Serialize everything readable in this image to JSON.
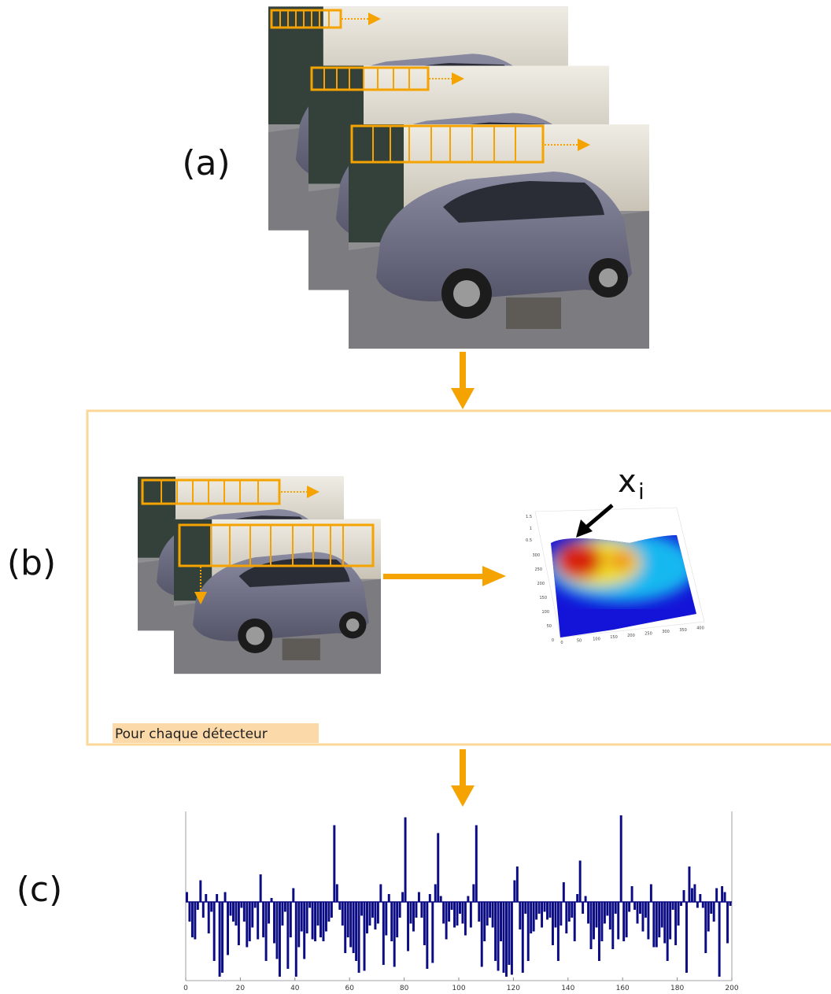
{
  "labels": {
    "a": "(a)",
    "b": "(b)",
    "c": "(c)"
  },
  "caption": "Pour chaque détecteur",
  "annotation": {
    "main": "x",
    "sub": "i"
  },
  "surface_plot": {
    "zticks": [
      1.5,
      1,
      0.5
    ],
    "yticks": [
      300,
      250,
      200,
      150,
      100,
      50,
      0
    ],
    "xticks": [
      0,
      50,
      100,
      150,
      200,
      250,
      300,
      350,
      400
    ]
  },
  "chart_data": {
    "type": "bar",
    "color": "#0b0b84",
    "xlim": [
      0,
      200
    ],
    "xticks": [
      0,
      20,
      40,
      60,
      80,
      100,
      120,
      140,
      160,
      180,
      200
    ],
    "ylim": [
      -4,
      4.6
    ],
    "values": [
      0.5,
      -1.0,
      -1.8,
      -1.9,
      -0.4,
      1.1,
      -0.8,
      0.4,
      -1.6,
      -0.5,
      -3.0,
      0.4,
      -3.8,
      -3.6,
      0.5,
      -2.7,
      -0.7,
      -1.0,
      -1.2,
      -2.2,
      -0.3,
      -1.0,
      -2.3,
      -2.0,
      -1.3,
      -0.3,
      -1.9,
      1.4,
      -1.8,
      -3.0,
      -1.1,
      0.2,
      -2.1,
      -2.9,
      -3.8,
      -1.2,
      -0.5,
      -3.4,
      -1.8,
      0.7,
      -3.8,
      -2.3,
      -1.5,
      -2.9,
      -1.6,
      -0.3,
      -1.9,
      -2.0,
      -1.2,
      -1.8,
      -2.0,
      -1.5,
      -1.0,
      -0.8,
      3.9,
      0.9,
      -0.4,
      -1.2,
      -2.6,
      -1.8,
      -2.3,
      -2.6,
      -3.0,
      -3.6,
      -0.7,
      -3.5,
      -1.6,
      -1.2,
      -0.8,
      -1.4,
      -1.1,
      0.9,
      -3.2,
      -1.7,
      0.4,
      -2.0,
      -3.3,
      -1.8,
      -0.8,
      0.5,
      4.3,
      -2.5,
      -1.1,
      -1.5,
      -0.8,
      0.5,
      -0.8,
      -2.2,
      -3.4,
      0.4,
      -3.1,
      0.9,
      3.5,
      0.3,
      -1.1,
      -1.9,
      -1.0,
      -0.4,
      -1.3,
      -1.2,
      -0.6,
      -1.1,
      -1.7,
      0.3,
      -1.3,
      0.9,
      3.9,
      -1.0,
      -3.3,
      -2.0,
      -1.2,
      -0.8,
      -1.3,
      -3.0,
      -3.5,
      -2.0,
      -3.6,
      -3.8,
      -3.2,
      -3.7,
      1.1,
      1.8,
      -1.4,
      -3.6,
      -0.6,
      -3.0,
      -1.6,
      -1.5,
      -0.9,
      -0.6,
      -1.3,
      -0.5,
      -0.9,
      -0.8,
      -2.2,
      -1.3,
      -3.0,
      -1.2,
      1.0,
      -1.6,
      -1.0,
      -0.8,
      -2.0,
      0.4,
      2.1,
      -0.6,
      0.3,
      -1.1,
      -2.4,
      -1.9,
      -1.3,
      -3.0,
      -2.0,
      -1.1,
      -0.7,
      -1.4,
      -2.4,
      -0.6,
      -1.9,
      4.4,
      -2.0,
      -1.8,
      -0.5,
      0.8,
      -0.4,
      -1.1,
      -0.6,
      -1.5,
      -0.8,
      -1.9,
      0.9,
      -2.3,
      -2.3,
      -1.8,
      -1.3,
      -2.1,
      -3.0,
      -1.9,
      -0.4,
      -2.2,
      -1.2,
      -0.2,
      0.6,
      -3.6,
      1.8,
      0.7,
      0.9,
      -0.3,
      0.4,
      -0.3,
      -2.6,
      -1.5,
      -0.6,
      -1.0,
      0.7,
      -3.8,
      0.8,
      0.5,
      -2.1,
      -0.2
    ]
  }
}
